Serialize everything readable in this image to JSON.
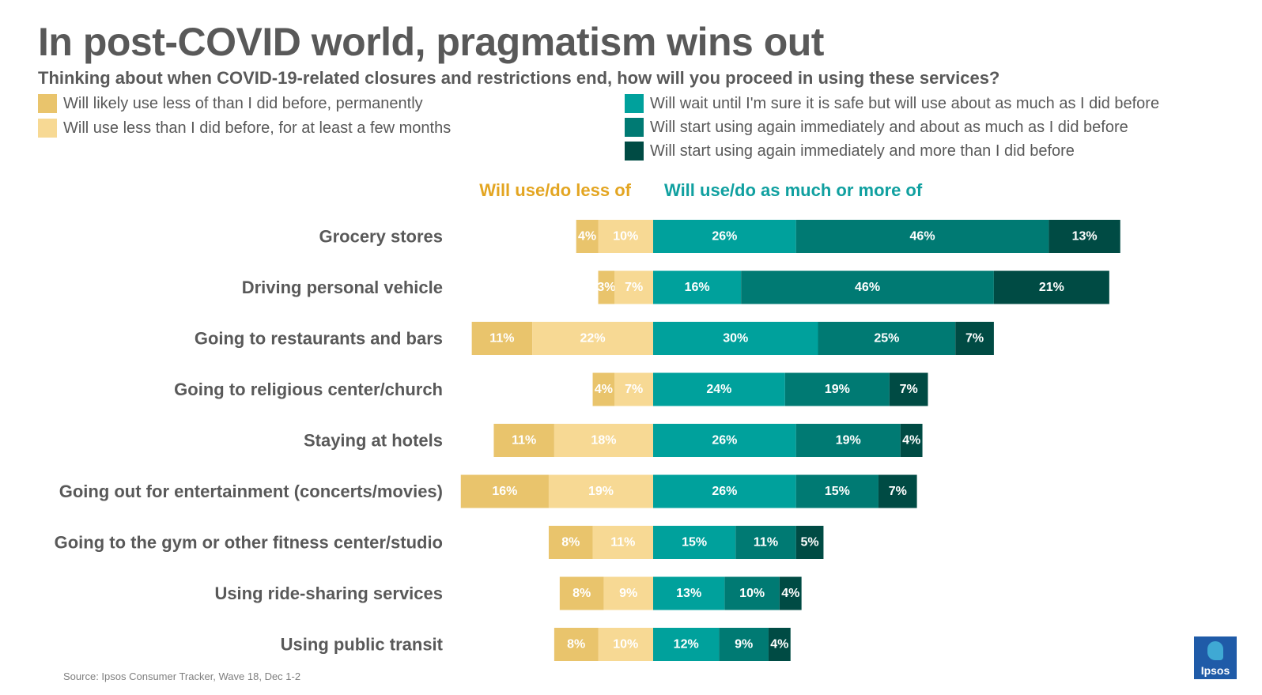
{
  "chart_data": {
    "type": "bar",
    "orientation": "horizontal",
    "stacking": "diverging",
    "title": "In post-COVID world, pragmatism wins out",
    "subtitle": "Thinking about when COVID-19-related closures and restrictions end, how will you proceed in using these services?",
    "group_headers": {
      "less": "Will use/do less of",
      "more": "Will use/do as much or more of"
    },
    "categories": [
      "Grocery stores",
      "Driving personal vehicle",
      "Going to restaurants and bars",
      "Going to religious center/church",
      "Staying at hotels",
      "Going out for entertainment (concerts/movies)",
      "Going to the gym or other fitness center/studio",
      "Using ride-sharing services",
      "Using public transit"
    ],
    "series": [
      {
        "name": "Will likely use less of than I did before, permanently",
        "side": "less",
        "color": "#e9c46c",
        "values": [
          4,
          3,
          11,
          4,
          11,
          16,
          8,
          8,
          8
        ]
      },
      {
        "name": "Will use less than I did before, for at least a few months",
        "side": "less",
        "color": "#f7d994",
        "values": [
          10,
          7,
          22,
          7,
          18,
          19,
          11,
          9,
          10
        ]
      },
      {
        "name": "Will wait until I'm sure it is safe but will use about as much as I did before",
        "side": "more",
        "color": "#00a19c",
        "values": [
          26,
          16,
          30,
          24,
          26,
          26,
          15,
          13,
          12
        ]
      },
      {
        "name": "Will start using again immediately and about as much as I did before",
        "side": "more",
        "color": "#007a73",
        "values": [
          46,
          46,
          25,
          19,
          19,
          15,
          11,
          10,
          9
        ]
      },
      {
        "name": "Will start using again immediately and more than I did before",
        "side": "more",
        "color": "#004b44",
        "values": [
          13,
          21,
          7,
          7,
          4,
          7,
          5,
          4,
          4
        ]
      }
    ],
    "unit": "%",
    "source": "Source: Ipsos Consumer Tracker, Wave 18, Dec 1-2"
  },
  "logo_text": "Ipsos"
}
